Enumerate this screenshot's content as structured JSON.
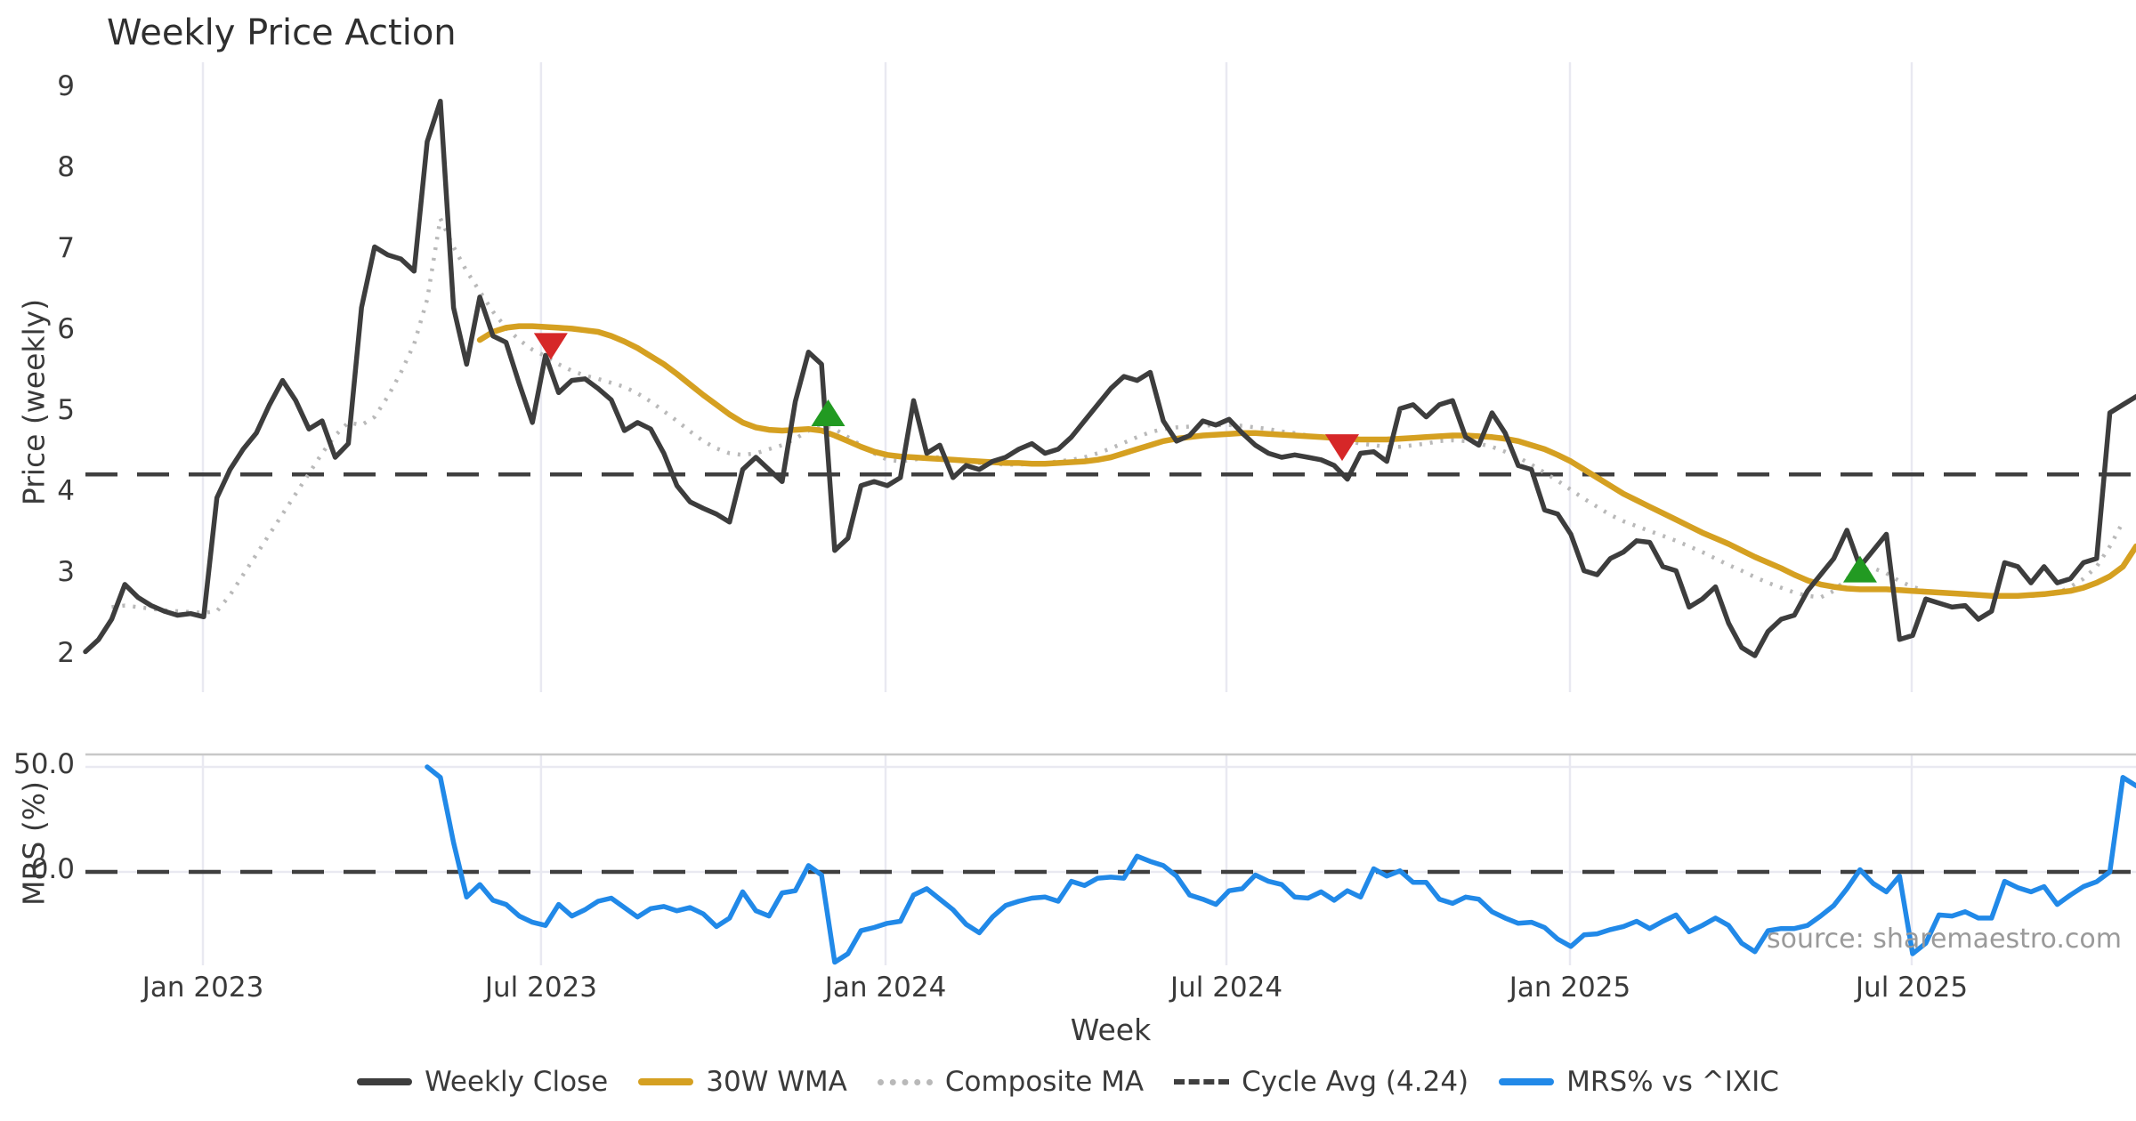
{
  "title": "Weekly Price Action",
  "source_note": "source: sharemaestro.com",
  "colors": {
    "weekly_close": "#3d3d3d",
    "wma": "#d5a021",
    "composite": "#b9b9b9",
    "cycle_avg": "#3f3f3f",
    "mrs": "#2189e8",
    "buy_marker": "#229a22",
    "sell_marker": "#d62728",
    "grid": "#e9e9f1",
    "spine": "#c8c8c8",
    "text": "#3a3a3a",
    "muted": "#9a9a9a"
  },
  "legend": [
    {
      "label": "Weekly Close",
      "swatch": "sw-close"
    },
    {
      "label": "30W WMA",
      "swatch": "sw-wma"
    },
    {
      "label": "Composite MA",
      "swatch": "sw-comp"
    },
    {
      "label": "Cycle Avg (4.24)",
      "swatch": "sw-cyc"
    },
    {
      "label": "MRS% vs ^IXIC",
      "swatch": "sw-mrs"
    }
  ],
  "x_axis": {
    "label": "Week",
    "ticks": [
      {
        "label": "Jan 2023",
        "week": 8.94
      },
      {
        "label": "Jul 2023",
        "week": 34.66
      },
      {
        "label": "Jan 2024",
        "week": 60.87
      },
      {
        "label": "Jul 2024",
        "week": 86.8
      },
      {
        "label": "Jan 2025",
        "week": 112.93
      },
      {
        "label": "Jul 2025",
        "week": 138.93
      }
    ]
  },
  "chart_data": [
    {
      "type": "line",
      "panel": "price",
      "title": "Weekly Price Action",
      "xlabel": "Week",
      "ylabel": "Price (weekly)",
      "yticks": [
        "9",
        "8",
        "7",
        "6",
        "5",
        "4",
        "3",
        "2"
      ],
      "ylim": [
        1.7,
        9.35
      ],
      "grid": "vertical-only",
      "cycle_avg_value": 4.24,
      "series": [
        {
          "name": "Weekly Close",
          "style": "solid",
          "start_week": 0,
          "values": [
            2.05,
            2.2,
            2.45,
            2.88,
            2.72,
            2.62,
            2.55,
            2.5,
            2.52,
            2.48,
            3.95,
            4.3,
            4.55,
            4.75,
            5.1,
            5.4,
            5.15,
            4.8,
            4.9,
            4.45,
            4.62,
            6.3,
            7.05,
            6.95,
            6.9,
            6.75,
            8.35,
            8.85,
            6.3,
            5.6,
            6.43,
            5.95,
            5.87,
            5.36,
            4.88,
            5.71,
            5.25,
            5.4,
            5.42,
            5.3,
            5.16,
            4.78,
            4.88,
            4.8,
            4.5,
            4.1,
            3.9,
            3.82,
            3.75,
            3.65,
            4.3,
            4.45,
            4.3,
            4.15,
            5.14,
            5.75,
            5.6,
            3.3,
            3.45,
            4.1,
            4.15,
            4.1,
            4.2,
            5.15,
            4.5,
            4.6,
            4.2,
            4.35,
            4.3,
            4.4,
            4.45,
            4.55,
            4.62,
            4.5,
            4.55,
            4.7,
            4.9,
            5.1,
            5.3,
            5.45,
            5.4,
            5.5,
            4.9,
            4.65,
            4.72,
            4.9,
            4.85,
            4.92,
            4.75,
            4.6,
            4.5,
            4.45,
            4.48,
            4.45,
            4.42,
            4.35,
            4.18,
            4.5,
            4.52,
            4.4,
            5.05,
            5.1,
            4.95,
            5.1,
            5.15,
            4.7,
            4.6,
            5.0,
            4.75,
            4.35,
            4.3,
            3.8,
            3.75,
            3.5,
            3.05,
            3.0,
            3.2,
            3.28,
            3.42,
            3.4,
            3.1,
            3.05,
            2.6,
            2.7,
            2.85,
            2.4,
            2.1,
            2.0,
            2.3,
            2.45,
            2.5,
            2.8,
            3.0,
            3.2,
            3.55,
            3.1,
            3.3,
            3.5,
            2.2,
            2.25,
            2.7,
            2.65,
            2.6,
            2.62,
            2.45,
            2.55,
            3.15,
            3.1,
            2.9,
            3.1,
            2.9,
            2.95,
            3.15,
            3.2,
            5.0,
            5.1,
            5.2
          ]
        },
        {
          "name": "30W WMA",
          "style": "solid",
          "start_week": 30,
          "values": [
            5.9,
            6.0,
            6.05,
            6.07,
            6.07,
            6.06,
            6.05,
            6.04,
            6.02,
            6.0,
            5.95,
            5.88,
            5.8,
            5.7,
            5.6,
            5.48,
            5.35,
            5.22,
            5.1,
            4.98,
            4.88,
            4.82,
            4.79,
            4.78,
            4.79,
            4.8,
            4.78,
            4.72,
            4.65,
            4.58,
            4.52,
            4.48,
            4.46,
            4.45,
            4.44,
            4.43,
            4.42,
            4.41,
            4.4,
            4.39,
            4.38,
            4.38,
            4.37,
            4.37,
            4.38,
            4.39,
            4.4,
            4.42,
            4.45,
            4.5,
            4.55,
            4.6,
            4.65,
            4.68,
            4.7,
            4.72,
            4.73,
            4.74,
            4.75,
            4.75,
            4.74,
            4.73,
            4.72,
            4.71,
            4.7,
            4.69,
            4.68,
            4.67,
            4.67,
            4.67,
            4.68,
            4.69,
            4.7,
            4.71,
            4.72,
            4.72,
            4.71,
            4.7,
            4.68,
            4.65,
            4.6,
            4.55,
            4.48,
            4.4,
            4.3,
            4.2,
            4.1,
            4.0,
            3.92,
            3.84,
            3.76,
            3.68,
            3.6,
            3.52,
            3.45,
            3.38,
            3.3,
            3.22,
            3.15,
            3.08,
            3.0,
            2.93,
            2.88,
            2.85,
            2.83,
            2.82,
            2.82,
            2.82,
            2.81,
            2.8,
            2.79,
            2.78,
            2.77,
            2.76,
            2.75,
            2.74,
            2.74,
            2.74,
            2.75,
            2.76,
            2.78,
            2.8,
            2.84,
            2.9,
            2.98,
            3.1,
            3.35
          ]
        },
        {
          "name": "Composite MA",
          "style": "dotted",
          "start_week": 2,
          "values": [
            2.6,
            2.62,
            2.6,
            2.58,
            2.56,
            2.55,
            2.54,
            2.53,
            2.55,
            2.75,
            3.0,
            3.25,
            3.5,
            3.75,
            4.0,
            4.25,
            4.5,
            4.72,
            4.88,
            4.85,
            4.95,
            5.2,
            5.5,
            5.85,
            6.4,
            7.4,
            7.05,
            6.75,
            6.5,
            6.25,
            6.05,
            5.9,
            5.78,
            5.7,
            5.6,
            5.52,
            5.46,
            5.42,
            5.37,
            5.32,
            5.24,
            5.14,
            5.02,
            4.9,
            4.77,
            4.65,
            4.56,
            4.5,
            4.48,
            4.5,
            4.55,
            4.6,
            4.68,
            4.78,
            4.84,
            4.8,
            4.7,
            4.6,
            4.5,
            4.42,
            4.4,
            4.42,
            4.45,
            4.45,
            4.42,
            4.4,
            4.38,
            4.37,
            4.36,
            4.36,
            4.37,
            4.38,
            4.4,
            4.42,
            4.45,
            4.5,
            4.56,
            4.63,
            4.7,
            4.76,
            4.8,
            4.82,
            4.83,
            4.84,
            4.85,
            4.85,
            4.84,
            4.82,
            4.8,
            4.77,
            4.75,
            4.72,
            4.7,
            4.68,
            4.65,
            4.62,
            4.6,
            4.58,
            4.58,
            4.6,
            4.62,
            4.65,
            4.66,
            4.65,
            4.62,
            4.58,
            4.52,
            4.45,
            4.36,
            4.26,
            4.16,
            4.05,
            3.94,
            3.84,
            3.74,
            3.66,
            3.6,
            3.54,
            3.48,
            3.42,
            3.35,
            3.28,
            3.2,
            3.12,
            3.05,
            2.97,
            2.9,
            2.84,
            2.78,
            2.74,
            2.72,
            2.8,
            2.95,
            3.05,
            3.08,
            3.02,
            2.92,
            2.85,
            2.8,
            2.78,
            2.76,
            2.75,
            2.74,
            2.74,
            2.74,
            2.74,
            2.74,
            2.75,
            2.77,
            2.85,
            2.95,
            3.1,
            3.35,
            3.65
          ]
        }
      ],
      "markers": [
        {
          "signal": "sell",
          "week": 35.4,
          "value": 5.82
        },
        {
          "signal": "buy",
          "week": 56.5,
          "value": 5.0
        },
        {
          "signal": "sell",
          "week": 95.6,
          "value": 4.57
        },
        {
          "signal": "buy",
          "week": 135,
          "value": 3.07
        }
      ]
    },
    {
      "type": "line",
      "panel": "mrs",
      "ylabel": "MRS (%)",
      "yticks": [
        "50.0",
        "0.0"
      ],
      "ytick_values": [
        50.0,
        0.0
      ],
      "ylim": [
        -45,
        55
      ],
      "zero_line_dashed": true,
      "series": [
        {
          "name": "MRS% vs ^IXIC",
          "style": "solid",
          "start_week": 26,
          "values": [
            50,
            45,
            14,
            -12,
            -6,
            -13.5,
            -15.5,
            -21,
            -24,
            -25.5,
            -15.5,
            -21,
            -18,
            -14,
            -12.5,
            -17,
            -21.5,
            -17.5,
            -16.5,
            -18.5,
            -17,
            -20,
            -26,
            -22,
            -9.5,
            -18.5,
            -21,
            -10,
            -9,
            3,
            -1.5,
            -43,
            -39,
            -28,
            -26.5,
            -24.5,
            -23.5,
            -11,
            -8,
            -13,
            -18,
            -25,
            -29,
            -21.5,
            -16,
            -14,
            -12.5,
            -12,
            -14,
            -4.5,
            -6.5,
            -3,
            -2.5,
            -3,
            7.5,
            5,
            3,
            -2,
            -11,
            -13,
            -15.5,
            -9,
            -8,
            -1.5,
            -4.5,
            -6,
            -12,
            -12.5,
            -9.5,
            -13.5,
            -9,
            -12,
            1.5,
            -2,
            0.5,
            -5,
            -5,
            -13,
            -15,
            -12,
            -13,
            -19,
            -22,
            -24.5,
            -24,
            -26.5,
            -32,
            -35.5,
            -30,
            -29.5,
            -27.5,
            -26,
            -23.5,
            -27,
            -23.5,
            -20.5,
            -28.5,
            -25.5,
            -22,
            -25.5,
            -34,
            -38,
            -28,
            -27,
            -27,
            -25.5,
            -21,
            -16,
            -8,
            1,
            -5.5,
            -9.5,
            -2,
            -39,
            -34,
            -20.5,
            -21,
            -19,
            -22,
            -22,
            -4.5,
            -7.5,
            -9.5,
            -7,
            -15.5,
            -11,
            -7,
            -4.7,
            0,
            45,
            41
          ]
        }
      ]
    }
  ]
}
